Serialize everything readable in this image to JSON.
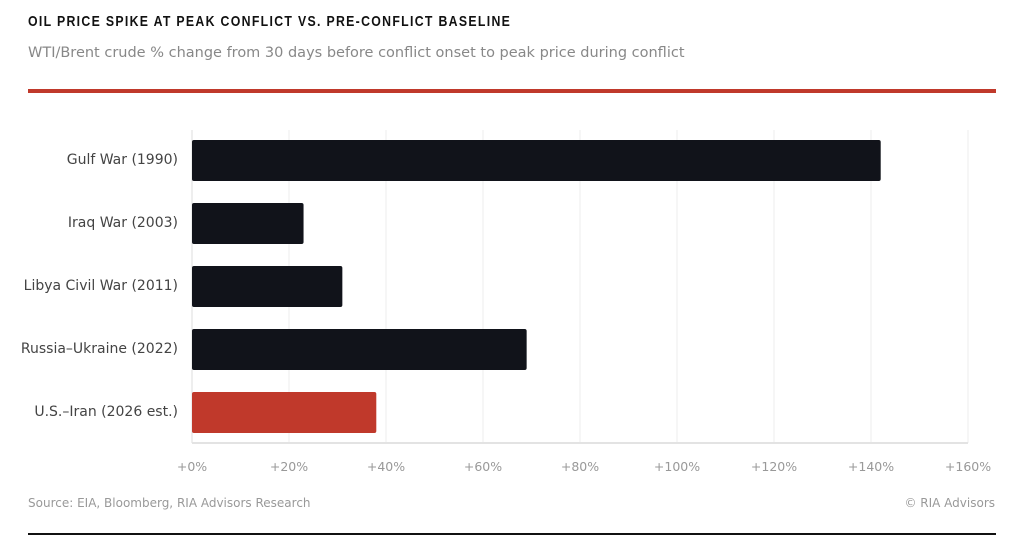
{
  "header": {
    "title": "OIL PRICE SPIKE AT PEAK CONFLICT VS. PRE-CONFLICT BASELINE",
    "subtitle": "WTI/Brent crude % change from 30 days before conflict onset to peak price during conflict"
  },
  "chart_data": {
    "type": "bar",
    "orientation": "horizontal",
    "categories": [
      "Gulf War (1990)",
      "Iraq War (2003)",
      "Libya Civil War (2011)",
      "Russia–Ukraine (2022)",
      "U.S.–Iran (2026 est.)"
    ],
    "values": [
      142,
      23,
      31,
      69,
      38
    ],
    "colors": [
      "#11131a",
      "#11131a",
      "#11131a",
      "#11131a",
      "#c0392b"
    ],
    "xlim": [
      0,
      160
    ],
    "xticks": [
      0,
      20,
      40,
      60,
      80,
      100,
      120,
      140,
      160
    ],
    "xtick_labels": [
      "+0%",
      "+20%",
      "+40%",
      "+60%",
      "+80%",
      "+100%",
      "+120%",
      "+140%",
      "+160%"
    ],
    "grid": true,
    "title": "",
    "xlabel": "",
    "ylabel": ""
  },
  "footer": {
    "source": "Source: EIA, Bloomberg, RIA Advisors Research",
    "copyright": "© RIA Advisors"
  },
  "colors": {
    "accent": "#c0392b",
    "bar": "#11131a"
  }
}
